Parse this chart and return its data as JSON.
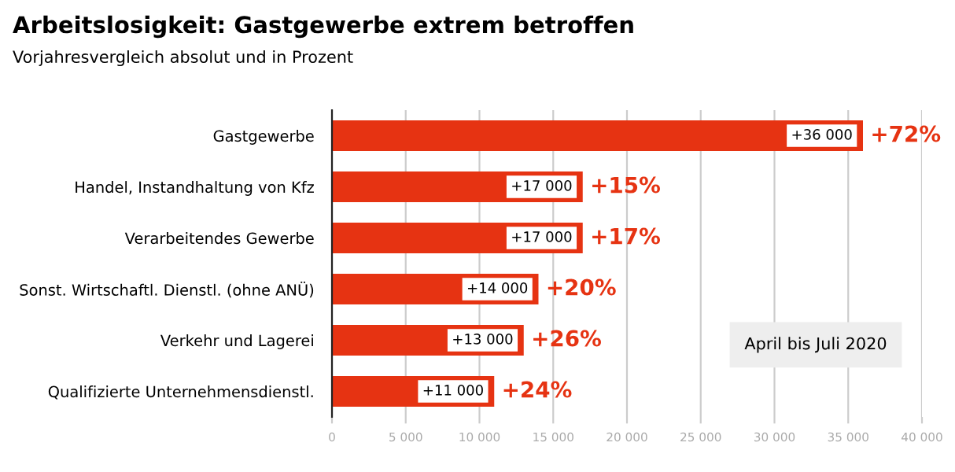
{
  "chart_data": {
    "type": "bar",
    "orientation": "horizontal",
    "title": "Arbeitslosigkeit: Gastgewerbe extrem betroffen",
    "subtitle": "Vorjahresvergleich absolut und in Prozent",
    "categories": [
      "Gastgewerbe",
      "Handel, Instandhaltung von Kfz",
      "Verarbeitendes Gewerbe",
      "Sonst. Wirtschaftl. Dienstl. (ohne ANÜ)",
      "Verkehr und Lagerei",
      "Qualifizierte Unternehmensdienstl."
    ],
    "values": [
      36000,
      17000,
      17000,
      14000,
      13000,
      11000
    ],
    "color": "#e63312",
    "value_labels": [
      "+36 000",
      "+17 000",
      "+17 000",
      "+14 000",
      "+13 000",
      "+11 000"
    ],
    "annotations": [
      {
        "text": "+72%",
        "x": 36000,
        "y": "Gastgewerbe"
      },
      {
        "text": "+15%",
        "x": 17000,
        "y": "Handel, Instandhaltung von Kfz"
      },
      {
        "text": "+17%",
        "x": 17000,
        "y": "Verarbeitendes Gewerbe"
      },
      {
        "text": "+20%",
        "x": 14000,
        "y": "Sonst. Wirtschaftl. Dienstl. (ohne ANÜ)"
      },
      {
        "text": "+26%",
        "x": 13000,
        "y": "Verkehr und Lagerei"
      },
      {
        "text": "+24%",
        "x": 11000,
        "y": "Qualifizierte Unternehmensdienstl."
      },
      "April bis Juli 2020"
    ],
    "xlim": [
      0,
      40000
    ],
    "xticks": [
      0,
      {
        "value": 5000,
        "label": "5 000"
      },
      {
        "value": 10000,
        "label": "10 000"
      },
      {
        "value": 15000,
        "label": "15 000"
      },
      {
        "value": 20000,
        "label": "20 000"
      },
      {
        "value": 25000,
        "label": "25 000"
      },
      {
        "value": 30000,
        "label": "30 000"
      },
      {
        "value": 35000,
        "label": "35 000"
      },
      {
        "value": 40000,
        "label": "40 000"
      }
    ],
    "grid": "x",
    "legend": false
  }
}
